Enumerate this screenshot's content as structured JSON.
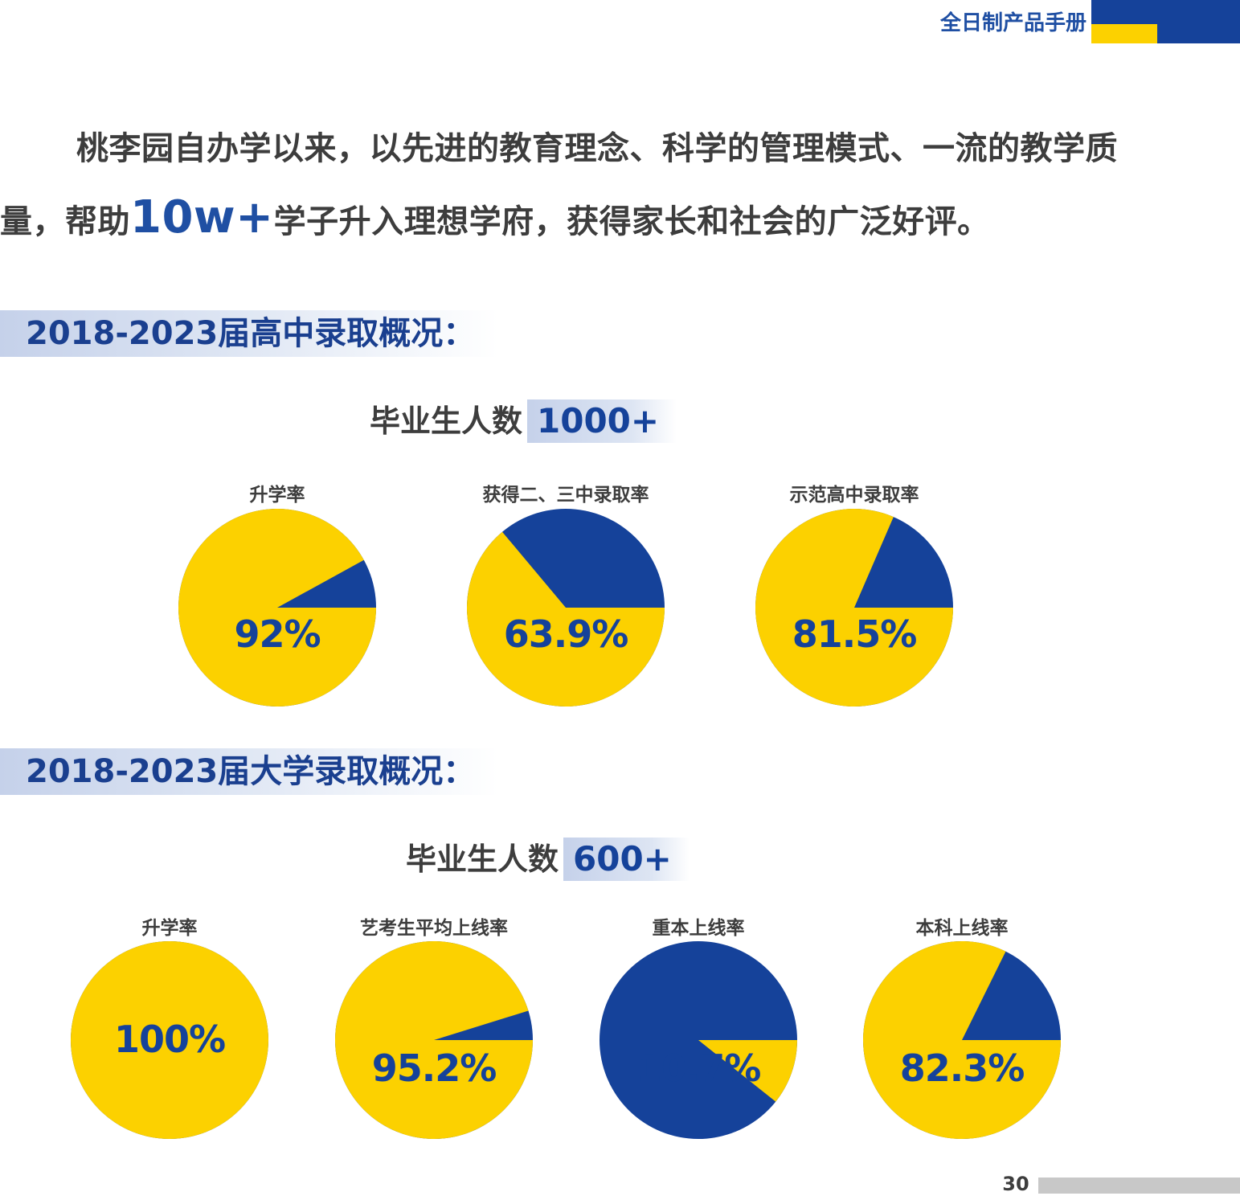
{
  "header": {
    "brand_title": "全日制产品手册"
  },
  "intro": {
    "before": "桃李园自办学以来，以先进的教育理念、科学的管理模式、一流的教学质量，帮助",
    "highlight": "10w+",
    "after": "学子升入理想学府，获得家长和社会的广泛好评。"
  },
  "high_school": {
    "section_title": "2018-2023届高中录取概况：",
    "grad_label": "毕业生人数",
    "grad_count": "1000+"
  },
  "university": {
    "section_title": "2018-2023届大学录取概况：",
    "grad_label": "毕业生人数",
    "grad_count": "600+"
  },
  "colors": {
    "yellow": "#fcd100",
    "blue": "#15429a"
  },
  "chart_data": [
    {
      "type": "pie",
      "title": "升学率",
      "value_label": "92%",
      "slices": [
        {
          "label": "升学率",
          "value": 92
        }
      ]
    },
    {
      "type": "pie",
      "title": "获得二、三中录取率",
      "value_label": "63.9%",
      "slices": [
        {
          "label": "获得二、三中录取率",
          "value": 63.9
        }
      ]
    },
    {
      "type": "pie",
      "title": "示范高中录取率",
      "value_label": "81.5%",
      "slices": [
        {
          "label": "示范高中录取率",
          "value": 81.5
        }
      ]
    },
    {
      "type": "pie",
      "title": "升学率",
      "value_label": "100%",
      "slices": [
        {
          "label": "升学率",
          "value": 100
        }
      ]
    },
    {
      "type": "pie",
      "title": "艺考生平均上线率",
      "value_label": "95.2%",
      "slices": [
        {
          "label": "艺考生平均上线率",
          "value": 95.2
        }
      ]
    },
    {
      "type": "pie",
      "title": "重本上线率",
      "value_label": "10.7%",
      "slices": [
        {
          "label": "重本上线率",
          "value": 10.7
        }
      ]
    },
    {
      "type": "pie",
      "title": "本科上线率",
      "value_label": "82.3%",
      "slices": [
        {
          "label": "本科上线率",
          "value": 82.3
        }
      ]
    }
  ],
  "footer": {
    "page_number": "30"
  }
}
